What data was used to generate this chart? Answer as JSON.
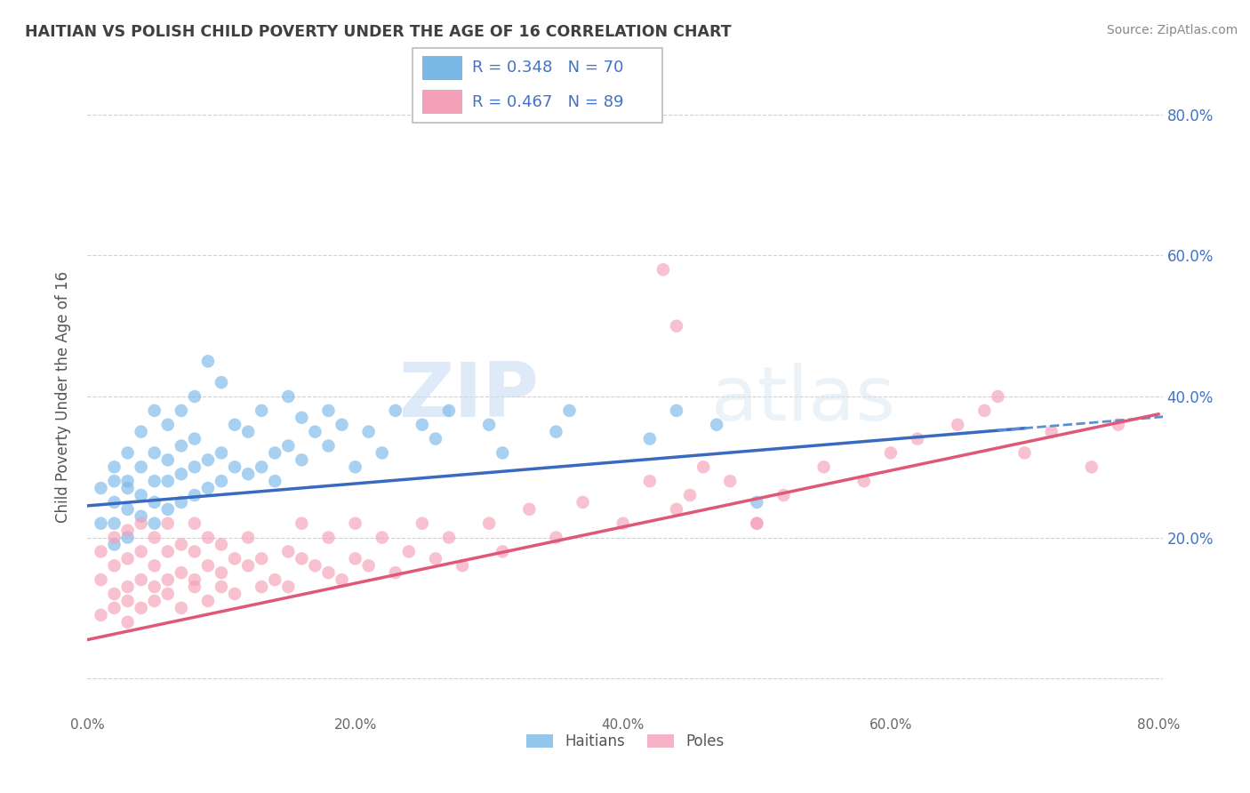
{
  "title": "HAITIAN VS POLISH CHILD POVERTY UNDER THE AGE OF 16 CORRELATION CHART",
  "source": "Source: ZipAtlas.com",
  "ylabel": "Child Poverty Under the Age of 16",
  "xmin": 0.0,
  "xmax": 0.8,
  "ymin": -0.05,
  "ymax": 0.85,
  "xticks": [
    0.0,
    0.2,
    0.4,
    0.6,
    0.8
  ],
  "yticks": [
    0.0,
    0.2,
    0.4,
    0.6,
    0.8
  ],
  "xtick_labels": [
    "0.0%",
    "20.0%",
    "40.0%",
    "60.0%",
    "80.0%"
  ],
  "right_ytick_labels": [
    "",
    "20.0%",
    "40.0%",
    "60.0%",
    "80.0%"
  ],
  "haitian_color": "#7ab8e8",
  "pole_color": "#f4a0b8",
  "haitian_R": 0.348,
  "haitian_N": 70,
  "pole_R": 0.467,
  "pole_N": 89,
  "haitian_line_color": "#3a6abf",
  "pole_line_color": "#e05878",
  "dashed_line_color": "#5b8fd4",
  "background_color": "#ffffff",
  "grid_color": "#cccccc",
  "title_color": "#404040",
  "label_color": "#4472c4",
  "watermark_zip": "ZIP",
  "watermark_atlas": "atlas",
  "haitian_line_x0": 0.0,
  "haitian_line_y0": 0.245,
  "haitian_line_x1": 0.7,
  "haitian_line_y1": 0.355,
  "pole_line_x0": 0.0,
  "pole_line_y0": 0.055,
  "pole_line_x1": 0.8,
  "pole_line_y1": 0.375,
  "haitian_scatter_x": [
    0.01,
    0.01,
    0.02,
    0.02,
    0.02,
    0.02,
    0.02,
    0.03,
    0.03,
    0.03,
    0.03,
    0.03,
    0.04,
    0.04,
    0.04,
    0.04,
    0.05,
    0.05,
    0.05,
    0.05,
    0.05,
    0.06,
    0.06,
    0.06,
    0.06,
    0.07,
    0.07,
    0.07,
    0.07,
    0.08,
    0.08,
    0.08,
    0.08,
    0.09,
    0.09,
    0.09,
    0.1,
    0.1,
    0.1,
    0.11,
    0.11,
    0.12,
    0.12,
    0.13,
    0.13,
    0.14,
    0.14,
    0.15,
    0.15,
    0.16,
    0.16,
    0.17,
    0.18,
    0.18,
    0.19,
    0.2,
    0.21,
    0.22,
    0.23,
    0.25,
    0.26,
    0.27,
    0.3,
    0.31,
    0.35,
    0.36,
    0.42,
    0.44,
    0.47,
    0.5
  ],
  "haitian_scatter_y": [
    0.22,
    0.27,
    0.19,
    0.25,
    0.28,
    0.22,
    0.3,
    0.2,
    0.24,
    0.27,
    0.32,
    0.28,
    0.23,
    0.26,
    0.3,
    0.35,
    0.22,
    0.25,
    0.28,
    0.32,
    0.38,
    0.24,
    0.28,
    0.31,
    0.36,
    0.25,
    0.29,
    0.33,
    0.38,
    0.26,
    0.3,
    0.34,
    0.4,
    0.27,
    0.31,
    0.45,
    0.28,
    0.32,
    0.42,
    0.3,
    0.36,
    0.29,
    0.35,
    0.3,
    0.38,
    0.32,
    0.28,
    0.33,
    0.4,
    0.31,
    0.37,
    0.35,
    0.33,
    0.38,
    0.36,
    0.3,
    0.35,
    0.32,
    0.38,
    0.36,
    0.34,
    0.38,
    0.36,
    0.32,
    0.35,
    0.38,
    0.34,
    0.38,
    0.36,
    0.25
  ],
  "pole_scatter_x": [
    0.01,
    0.01,
    0.01,
    0.02,
    0.02,
    0.02,
    0.02,
    0.03,
    0.03,
    0.03,
    0.03,
    0.03,
    0.04,
    0.04,
    0.04,
    0.04,
    0.05,
    0.05,
    0.05,
    0.05,
    0.06,
    0.06,
    0.06,
    0.06,
    0.07,
    0.07,
    0.07,
    0.08,
    0.08,
    0.08,
    0.08,
    0.09,
    0.09,
    0.09,
    0.1,
    0.1,
    0.1,
    0.11,
    0.11,
    0.12,
    0.12,
    0.13,
    0.13,
    0.14,
    0.15,
    0.15,
    0.16,
    0.16,
    0.17,
    0.18,
    0.18,
    0.19,
    0.2,
    0.2,
    0.21,
    0.22,
    0.23,
    0.24,
    0.25,
    0.26,
    0.27,
    0.28,
    0.3,
    0.31,
    0.33,
    0.35,
    0.37,
    0.4,
    0.42,
    0.44,
    0.45,
    0.46,
    0.48,
    0.5,
    0.52,
    0.55,
    0.58,
    0.6,
    0.62,
    0.65,
    0.67,
    0.68,
    0.7,
    0.72,
    0.75,
    0.77,
    0.43,
    0.44,
    0.5
  ],
  "pole_scatter_y": [
    0.14,
    0.18,
    0.09,
    0.12,
    0.16,
    0.2,
    0.1,
    0.13,
    0.17,
    0.21,
    0.08,
    0.11,
    0.14,
    0.18,
    0.22,
    0.1,
    0.13,
    0.16,
    0.2,
    0.11,
    0.14,
    0.18,
    0.22,
    0.12,
    0.15,
    0.19,
    0.1,
    0.14,
    0.18,
    0.22,
    0.13,
    0.16,
    0.2,
    0.11,
    0.15,
    0.19,
    0.13,
    0.17,
    0.12,
    0.16,
    0.2,
    0.13,
    0.17,
    0.14,
    0.18,
    0.13,
    0.17,
    0.22,
    0.16,
    0.15,
    0.2,
    0.14,
    0.17,
    0.22,
    0.16,
    0.2,
    0.15,
    0.18,
    0.22,
    0.17,
    0.2,
    0.16,
    0.22,
    0.18,
    0.24,
    0.2,
    0.25,
    0.22,
    0.28,
    0.24,
    0.26,
    0.3,
    0.28,
    0.22,
    0.26,
    0.3,
    0.28,
    0.32,
    0.34,
    0.36,
    0.38,
    0.4,
    0.32,
    0.35,
    0.3,
    0.36,
    0.58,
    0.5,
    0.22
  ]
}
